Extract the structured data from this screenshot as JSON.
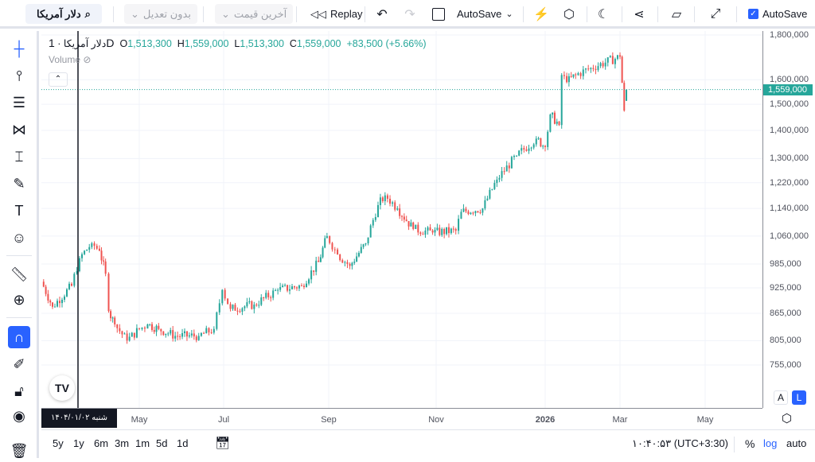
{
  "toolbar": {
    "symbol": "دلار آمریکا",
    "adjust": "بدون تعدیل",
    "price_type": "آخرین قیمت",
    "replay": "Replay",
    "layout_name": "AutoSave",
    "autosave_label": "AutoSave",
    "autosave_checked": true
  },
  "legend": {
    "symbol": "دلار آمریکا",
    "interval": "1D",
    "o_label": "O",
    "o": "1,513,300",
    "h_label": "H",
    "h": "1,559,000",
    "l_label": "L",
    "l": "1,513,300",
    "c_label": "C",
    "c": "1,559,000",
    "change": "+83,500 (+5.66%)",
    "volume": "Volume"
  },
  "price_axis": {
    "ticks": [
      "1,800,000",
      "1,600,000",
      "1,500,000",
      "1,400,000",
      "1,300,000",
      "1,220,000",
      "1,140,000",
      "1,060,000",
      "985,000",
      "925,000",
      "865,000",
      "805,000",
      "755,000"
    ],
    "last_price": "1,559,000",
    "btn_a": "A",
    "btn_l": "L"
  },
  "time_axis": {
    "ticks": [
      "May",
      "Jul",
      "Sep",
      "Nov",
      "2026",
      "Mar",
      "May"
    ],
    "crosshair_label": "شنبه ۱۴۰۴/۰۱/۰۲"
  },
  "bottom": {
    "ranges": [
      "5y",
      "1y",
      "6m",
      "3m",
      "1m",
      "5d",
      "1d"
    ],
    "clock": "۱۰:۴۰:۵۳ (UTC+3:30)",
    "percent": "%",
    "log": "log",
    "auto": "auto"
  },
  "colors": {
    "up": "#26a69a",
    "down": "#ef5350",
    "accent": "#2962ff"
  },
  "chart_data": {
    "type": "candlestick",
    "scale": "log",
    "interval": "1D",
    "ylim": [
      720000,
      1820000
    ],
    "points": [
      [
        "2025-02-27",
        940000
      ],
      [
        "2025-03-06",
        880000
      ],
      [
        "2025-03-18",
        930000
      ],
      [
        "2025-03-23",
        1000000
      ],
      [
        "2025-03-31",
        1040000
      ],
      [
        "2025-04-05",
        1020000
      ],
      [
        "2025-04-09",
        960000
      ],
      [
        "2025-04-11",
        870000
      ],
      [
        "2025-04-15",
        840000
      ],
      [
        "2025-04-23",
        805000
      ],
      [
        "2025-05-01",
        830000
      ],
      [
        "2025-05-07",
        840000
      ],
      [
        "2025-05-15",
        830000
      ],
      [
        "2025-05-27",
        815000
      ],
      [
        "2025-06-13",
        815000
      ],
      [
        "2025-06-24",
        830000
      ],
      [
        "2025-06-30",
        920000
      ],
      [
        "2025-07-05",
        875000
      ],
      [
        "2025-07-19",
        885000
      ],
      [
        "2025-08-02",
        920000
      ],
      [
        "2025-08-16",
        930000
      ],
      [
        "2025-08-26",
        990000
      ],
      [
        "2025-08-31",
        1060000
      ],
      [
        "2025-09-06",
        1010000
      ],
      [
        "2025-09-13",
        980000
      ],
      [
        "2025-09-22",
        1040000
      ],
      [
        "2025-09-29",
        1150000
      ],
      [
        "2025-10-03",
        1180000
      ],
      [
        "2025-10-10",
        1140000
      ],
      [
        "2025-10-19",
        1080000
      ],
      [
        "2025-10-30",
        1070000
      ],
      [
        "2025-11-12",
        1075000
      ],
      [
        "2025-11-15",
        1130000
      ],
      [
        "2025-11-27",
        1140000
      ],
      [
        "2025-12-05",
        1230000
      ],
      [
        "2025-12-16",
        1310000
      ],
      [
        "2025-12-27",
        1370000
      ],
      [
        "2026-01-01",
        1340000
      ],
      [
        "2026-01-05",
        1460000
      ],
      [
        "2026-01-12",
        1420000
      ],
      [
        "2026-01-14",
        1620000
      ],
      [
        "2026-01-18",
        1590000
      ],
      [
        "2026-01-25",
        1620000
      ],
      [
        "2026-02-06",
        1650000
      ],
      [
        "2026-03-01",
        1700000
      ],
      [
        "2026-03-04",
        1475000
      ]
    ],
    "last_candle": {
      "date": "2026-03-05",
      "open": 1513300,
      "high": 1559000,
      "low": 1513300,
      "close": 1559000
    }
  }
}
